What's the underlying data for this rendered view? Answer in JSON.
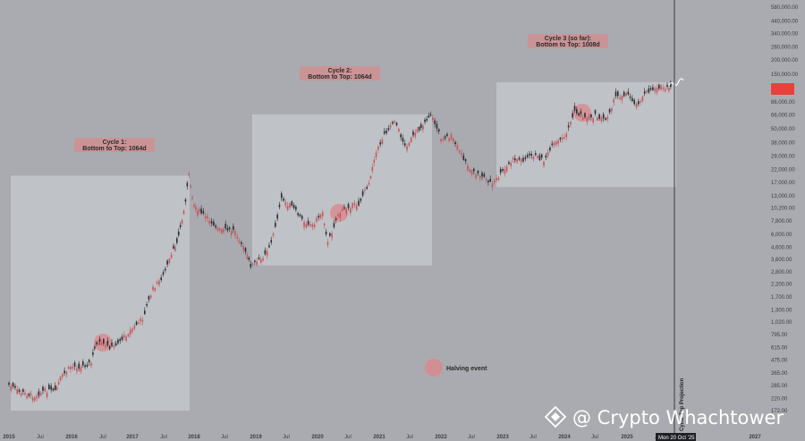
{
  "chart_data": {
    "type": "line",
    "scale": "log",
    "series": [
      {
        "points": [
          [
            "2015-01",
            290
          ],
          [
            "2015-03",
            250
          ],
          [
            "2015-06",
            230
          ],
          [
            "2015-08",
            260
          ],
          [
            "2015-10",
            250
          ],
          [
            "2015-11",
            330
          ],
          [
            "2016-01",
            420
          ],
          [
            "2016-03",
            415
          ],
          [
            "2016-05",
            450
          ],
          [
            "2016-06",
            680
          ],
          [
            "2016-07",
            650
          ],
          [
            "2016-09",
            610
          ],
          [
            "2016-11",
            730
          ],
          [
            "2017-01",
            900
          ],
          [
            "2017-03",
            1100
          ],
          [
            "2017-05",
            2000
          ],
          [
            "2017-07",
            2600
          ],
          [
            "2017-09",
            4300
          ],
          [
            "2017-10",
            5800
          ],
          [
            "2017-11",
            9500
          ],
          [
            "2017-12",
            19500
          ],
          [
            "2018-01",
            11000
          ],
          [
            "2018-02",
            9500
          ],
          [
            "2018-04",
            8000
          ],
          [
            "2018-06",
            6500
          ],
          [
            "2018-09",
            6500
          ],
          [
            "2018-11",
            4200
          ],
          [
            "2018-12",
            3200
          ],
          [
            "2019-02",
            3600
          ],
          [
            "2019-04",
            5000
          ],
          [
            "2019-06",
            12000
          ],
          [
            "2019-08",
            10500
          ],
          [
            "2019-10",
            8000
          ],
          [
            "2019-12",
            7200
          ],
          [
            "2020-02",
            9500
          ],
          [
            "2020-03",
            5000
          ],
          [
            "2020-05",
            9000
          ],
          [
            "2020-07",
            10500
          ],
          [
            "2020-09",
            11000
          ],
          [
            "2020-11",
            17000
          ],
          [
            "2020-12",
            28000
          ],
          [
            "2021-02",
            45000
          ],
          [
            "2021-04",
            60000
          ],
          [
            "2021-06",
            35000
          ],
          [
            "2021-08",
            45000
          ],
          [
            "2021-11",
            67000
          ],
          [
            "2022-01",
            42000
          ],
          [
            "2022-03",
            43000
          ],
          [
            "2022-05",
            30000
          ],
          [
            "2022-07",
            21000
          ],
          [
            "2022-09",
            19500
          ],
          [
            "2022-11",
            16500
          ],
          [
            "2023-01",
            21000
          ],
          [
            "2023-03",
            27000
          ],
          [
            "2023-05",
            27000
          ],
          [
            "2023-07",
            29500
          ],
          [
            "2023-09",
            26500
          ],
          [
            "2023-11",
            37000
          ],
          [
            "2024-01",
            42000
          ],
          [
            "2024-03",
            70000
          ],
          [
            "2024-05",
            63000
          ],
          [
            "2024-07",
            65000
          ],
          [
            "2024-09",
            60000
          ],
          [
            "2024-11",
            95000
          ],
          [
            "2025-01",
            102000
          ],
          [
            "2025-03",
            82000
          ],
          [
            "2025-05",
            104000
          ],
          [
            "2025-07",
            118000
          ],
          [
            "2025-09",
            112000
          ],
          [
            "2025-10",
            112000
          ]
        ]
      }
    ],
    "y_ticks": [
      "580,000.00",
      "440,000.00",
      "340,000.00",
      "260,000.00",
      "200,000.00",
      "150,000.00",
      "86,000.00",
      "66,000.00",
      "50,000.00",
      "38,000.00",
      "29,000.00",
      "22,000.00",
      "17,000.00",
      "13,000.00",
      "10,200.00",
      "7,800.00",
      "6,000.00",
      "4,600.00",
      "3,600.00",
      "2,800.00",
      "2,200.00",
      "1,700.00",
      "1,300.00",
      "1,020.00",
      "795.00",
      "615.00",
      "475.00",
      "365.00",
      "285.00",
      "220.00",
      "172.00"
    ],
    "x_ticks": [
      "2015",
      "Jul",
      "2016",
      "Jul",
      "2017",
      "Jul",
      "2018",
      "Jul",
      "2019",
      "Jul",
      "2020",
      "Jul",
      "2021",
      "Jul",
      "2022",
      "Jul",
      "2023",
      "Jul",
      "2024",
      "Jul",
      "2025",
      "Jul",
      "2027"
    ],
    "cycles": [
      {
        "line1": "Cycle 1:",
        "line2": "Bottom to Top: 1064d",
        "start": "2015-01",
        "end": "2017-12",
        "low": 172,
        "high": 19500
      },
      {
        "line1": "Cycle 2:",
        "line2": "Bottom to Top: 1064d",
        "start": "2018-12",
        "end": "2021-11",
        "low": 3200,
        "high": 67000
      },
      {
        "line1": "Cycle 3 (so far):",
        "line2": "Bottom to Top: 1008d",
        "start": "2022-11",
        "end": "2025-10",
        "low": 15500,
        "high": 128000
      }
    ],
    "halvings": [
      "2016-07",
      "2020-05",
      "2024-04"
    ],
    "legend_label": "Halving event",
    "projection_label": "Cycle Top Projection",
    "crosshair_date": "Mon 20 Oct '25",
    "price_badge_color": "#e8413a",
    "halving_color": "#d98a8d"
  },
  "watermark": {
    "text": "@ Crypto Whachtower"
  }
}
